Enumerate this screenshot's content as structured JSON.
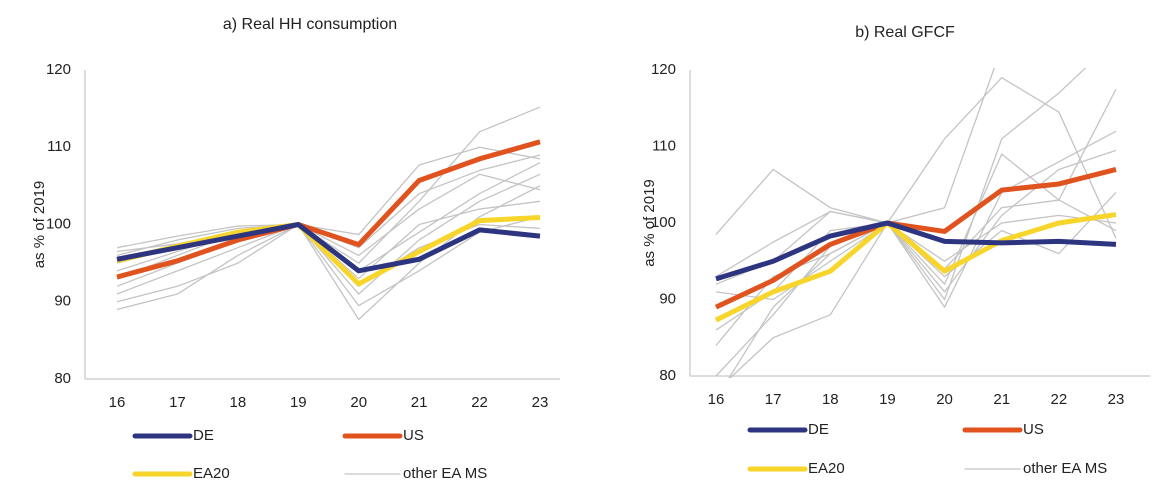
{
  "chart_data": [
    {
      "type": "line",
      "title": "a)  Real HH consumption",
      "y_label": "as % of 2019",
      "categories": [
        "16",
        "17",
        "18",
        "19",
        "20",
        "21",
        "22",
        "23"
      ],
      "ylim": [
        80,
        120
      ],
      "yticks": [
        80,
        90,
        100,
        110,
        120
      ],
      "series": [
        {
          "name": "other EA MS",
          "color": "#c4c4c4",
          "values": [
            [
              97,
              98.5,
              99.8,
              100,
              98.7,
              107.7,
              110,
              108.5
            ],
            [
              96,
              98,
              99.5,
              100,
              95,
              103,
              112,
              115.2
            ],
            [
              90,
              92,
              95,
              100,
              87.7,
              95,
              101,
              105
            ],
            [
              89,
              91,
              96,
              100,
              89.5,
              94,
              99,
              101
            ],
            [
              94,
              96.5,
              99,
              100,
              96,
              102,
              106.5,
              104.5
            ],
            [
              92,
              95,
              98,
              100,
              94,
              99,
              104,
              108
            ],
            [
              96.5,
              97.5,
              99,
              100,
              92,
              97,
              100,
              99.5
            ],
            [
              91,
              94,
              97,
              100,
              91,
              98,
              103,
              106.5
            ],
            [
              95,
              97,
              98.5,
              100,
              97,
              104,
              107,
              109
            ],
            [
              93,
              96,
              99,
              100,
              93,
              100,
              102,
              103
            ]
          ]
        },
        {
          "name": "US",
          "color": "#e0531f",
          "values": [
            93.2,
            95.3,
            98,
            100,
            97.4,
            105.7,
            108.5,
            110.7
          ]
        },
        {
          "name": "EA20",
          "color": "#f7d52a",
          "values": [
            95.3,
            97.2,
            99,
            100,
            92.3,
            96.5,
            100.5,
            100.9
          ]
        },
        {
          "name": "DE",
          "color": "#2e3580",
          "values": [
            95.5,
            97,
            98.5,
            100,
            94,
            95.5,
            99.3,
            98.5
          ]
        }
      ]
    },
    {
      "type": "line",
      "title": "b) Real GFCF",
      "y_label": "as % of 2019",
      "categories": [
        "16",
        "17",
        "18",
        "19",
        "20",
        "21",
        "22",
        "23"
      ],
      "ylim": [
        80,
        120
      ],
      "yticks": [
        80,
        90,
        100,
        110,
        120
      ],
      "series": [
        {
          "name": "other EA MS",
          "color": "#c4c4c4",
          "values": [
            [
              98.5,
              107,
              102,
              100,
              111,
              119,
              114.5,
              98
            ],
            [
              93,
              97.5,
              101.5,
              100,
              102,
              123,
              130,
              125
            ],
            [
              80,
              88,
              97,
              100,
              92,
              109,
              103,
              117.5
            ],
            [
              78,
              85,
              88,
              100,
              89,
              104,
              108,
              112
            ],
            [
              84,
              93,
              96,
              100,
              91,
              101,
              107,
              109.5
            ],
            [
              91,
              90,
              95,
              100,
              95,
              100,
              101,
              100
            ],
            [
              86,
              91,
              99,
              100,
              90,
              111,
              117,
              124
            ],
            [
              77,
              89,
              96,
              100,
              93,
              99,
              96,
              104
            ],
            [
              92,
              95,
              101.5,
              100,
              94,
              102,
              103,
              99
            ]
          ]
        },
        {
          "name": "US",
          "color": "#e0531f",
          "values": [
            89,
            92.5,
            97.2,
            100,
            98.9,
            104.3,
            105.1,
            107
          ]
        },
        {
          "name": "EA20",
          "color": "#f7d52a",
          "values": [
            87.3,
            91,
            93.7,
            100,
            93.7,
            97.7,
            100,
            101.1
          ]
        },
        {
          "name": "DE",
          "color": "#2e3580",
          "values": [
            92.7,
            95,
            98.3,
            100,
            97.6,
            97.4,
            97.6,
            97.2
          ]
        }
      ]
    }
  ]
}
